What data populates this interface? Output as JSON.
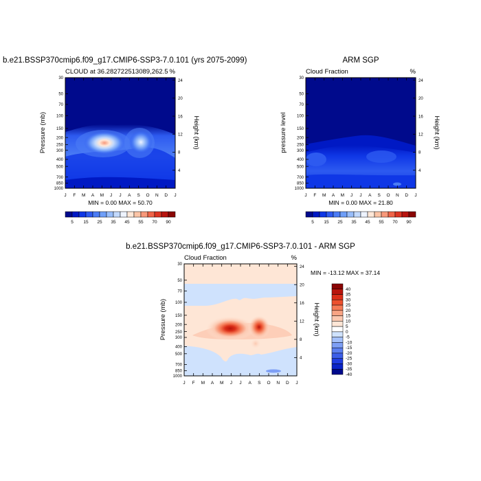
{
  "chart_data": [
    {
      "type": "heatmap",
      "title": "b.e21.BSSP370cmip6.f09_g17.CMIP6-SSP3-7.0.101 (yrs 2075-2099)",
      "left_label": "CLOUD at 36.282722513089,262.5",
      "right_label": "%",
      "ylabel": "Pressure (mb)",
      "ylabel_right": "Height (km)",
      "x_ticks": [
        "J",
        "F",
        "M",
        "A",
        "M",
        "J",
        "J",
        "A",
        "S",
        "O",
        "N",
        "D",
        "J"
      ],
      "y_ticks": [
        "30",
        "50",
        "70",
        "100",
        "150",
        "200",
        "250",
        "300",
        "400",
        "500",
        "700",
        "850",
        "1000"
      ],
      "height_ticks": [
        "24",
        "20",
        "16",
        "12",
        "8",
        "4"
      ],
      "stats": "MIN =   0.00 MAX =  50.70",
      "colorbar_labels": [
        "5",
        "15",
        "25",
        "35",
        "45",
        "55",
        "70",
        "90"
      ],
      "max_value": 50.7,
      "min_value": 0.0
    },
    {
      "type": "heatmap",
      "title": "ARM SGP",
      "left_label": "Cloud Fraction",
      "right_label": "%",
      "ylabel": "pressure level",
      "ylabel_right": "Height (km)",
      "x_ticks": [
        "J",
        "F",
        "M",
        "A",
        "M",
        "J",
        "J",
        "A",
        "S",
        "O",
        "N",
        "D",
        "J"
      ],
      "y_ticks": [
        "30",
        "50",
        "70",
        "100",
        "150",
        "200",
        "250",
        "300",
        "400",
        "500",
        "700",
        "850",
        "1000"
      ],
      "height_ticks": [
        "24",
        "20",
        "16",
        "12",
        "8",
        "4"
      ],
      "stats": "MIN =   0.00 MAX =  21.80",
      "colorbar_labels": [
        "5",
        "15",
        "25",
        "35",
        "45",
        "55",
        "70",
        "90"
      ],
      "max_value": 21.8,
      "min_value": 0.0
    },
    {
      "type": "heatmap",
      "title": "b.e21.BSSP370cmip6.f09_g17.CMIP6-SSP3-7.0.101 - ARM SGP",
      "left_label": "Cloud Fraction",
      "right_label": "%",
      "ylabel": "Pressure (mb)",
      "ylabel_right": "Height (km)",
      "x_ticks": [
        "J",
        "F",
        "M",
        "A",
        "M",
        "J",
        "J",
        "A",
        "S",
        "O",
        "N",
        "D",
        "J"
      ],
      "y_ticks": [
        "30",
        "50",
        "70",
        "100",
        "150",
        "200",
        "250",
        "300",
        "400",
        "500",
        "700",
        "850",
        "1000"
      ],
      "height_ticks": [
        "24",
        "20",
        "16",
        "12",
        "8",
        "4"
      ],
      "stats": "MIN = -13.12 MAX =  37.14",
      "colorbar_labels": [
        "40",
        "35",
        "30",
        "25",
        "20",
        "15",
        "10",
        "5",
        "0",
        "-5",
        "-10",
        "-15",
        "-20",
        "-25",
        "-30",
        "-35",
        "-40"
      ],
      "max_value": 37.14,
      "min_value": -13.12
    }
  ],
  "colors": {
    "abs_scale": [
      "#000a8c",
      "#0019c4",
      "#0f37e6",
      "#2d5af0",
      "#4b7cf5",
      "#6e9ef8",
      "#97bdfa",
      "#c2d9fc",
      "#eef3ff",
      "#ffe8d8",
      "#fbc4a6",
      "#f7987a",
      "#ef6448",
      "#dc3422",
      "#b8140f",
      "#8a0604"
    ],
    "diff_scale": [
      "#000a8c",
      "#0a24c8",
      "#1f3ce0",
      "#3c5ee8",
      "#5c7ff0",
      "#7e9ff5",
      "#a4c0fa",
      "#cfe2fd",
      "#ffffff",
      "#fee6d6",
      "#fcc8b0",
      "#f9a484",
      "#f57a56",
      "#ec502e",
      "#da2d17",
      "#b8140c",
      "#8a0504"
    ]
  }
}
